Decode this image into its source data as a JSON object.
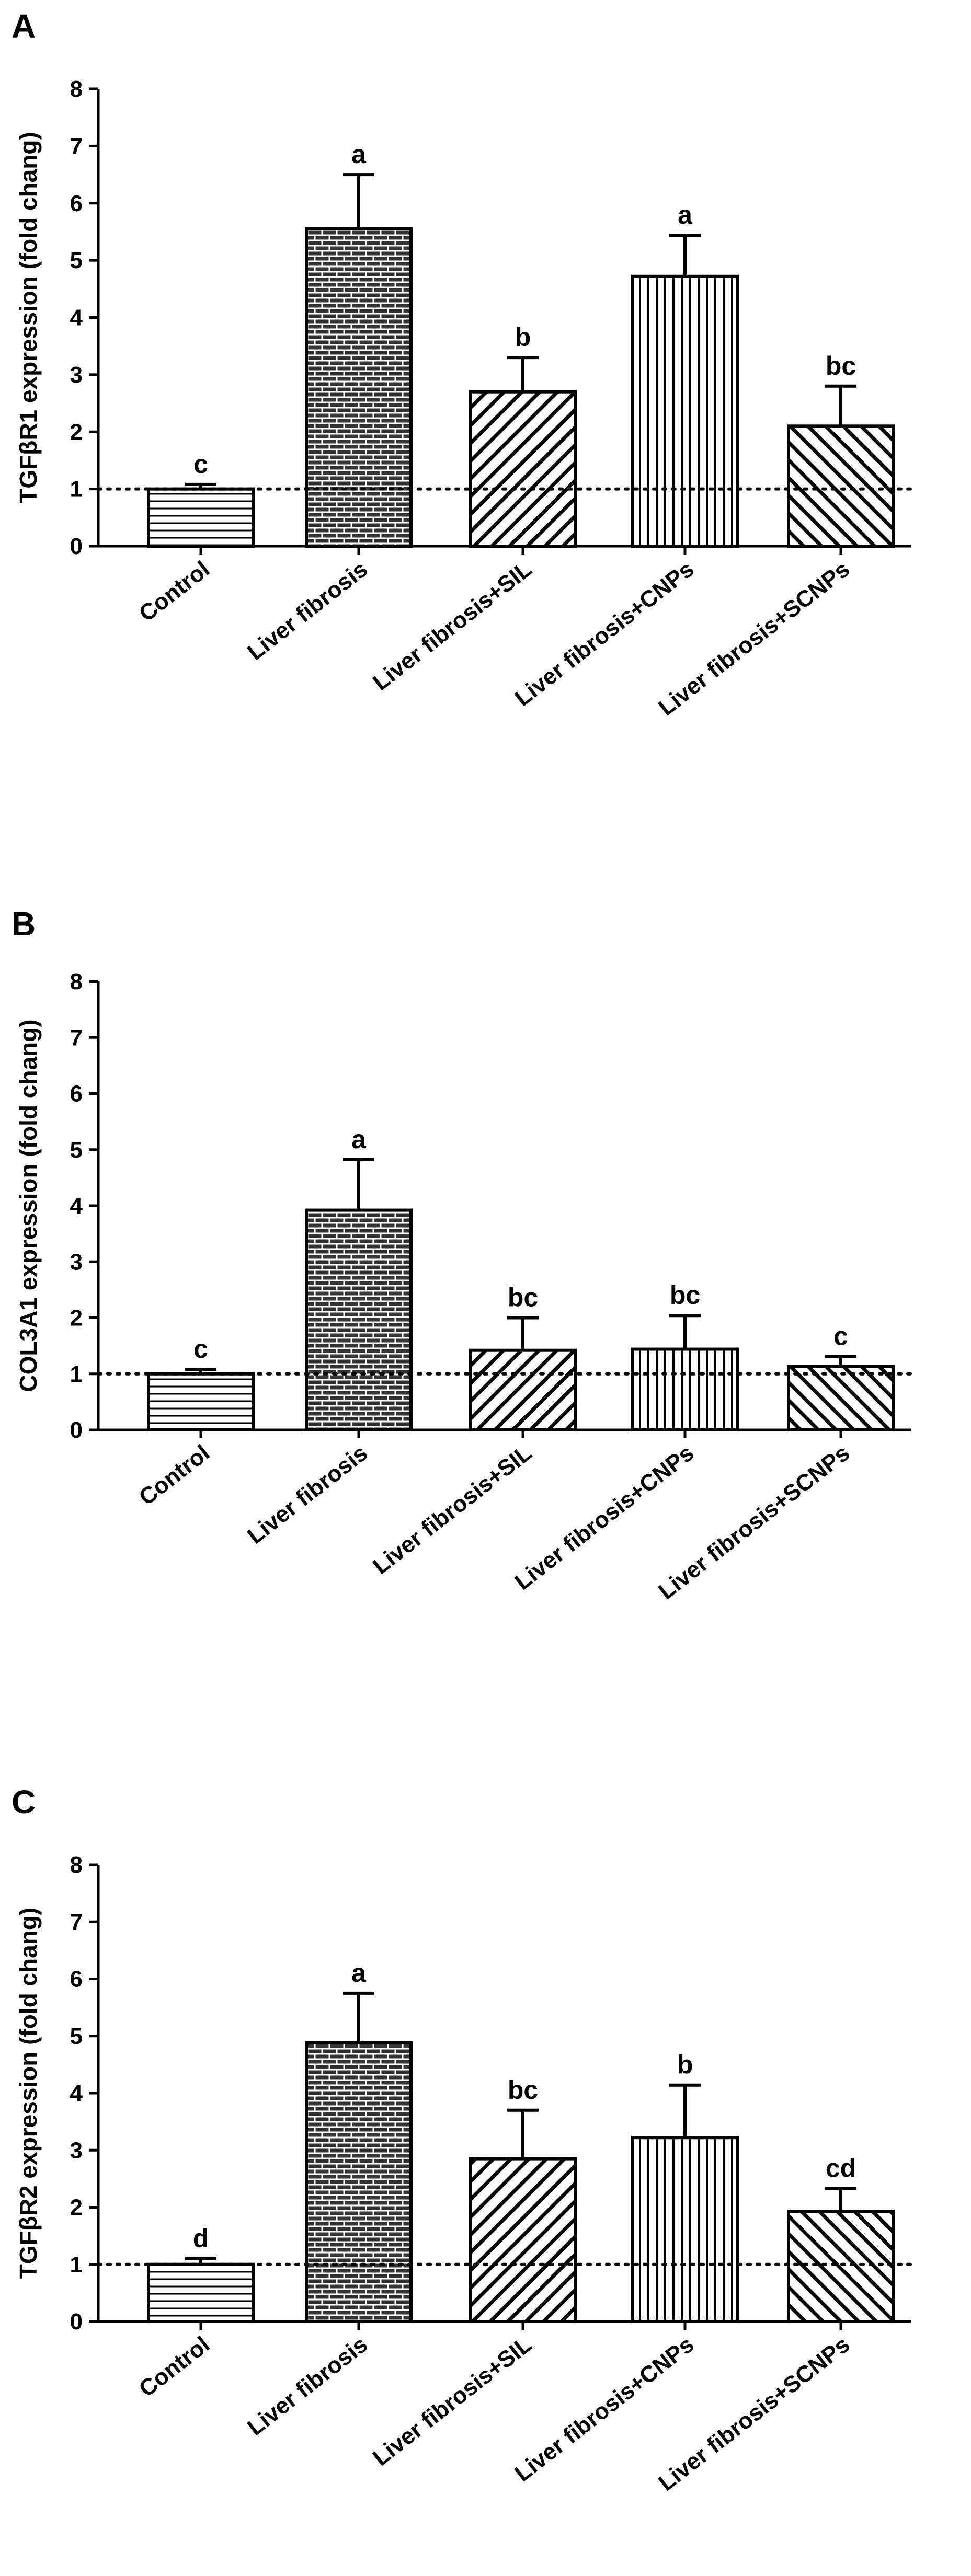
{
  "colors": {
    "ink": "#000000",
    "background": "#ffffff"
  },
  "chart_data": [
    {
      "type": "bar",
      "panel": "A",
      "title": "",
      "xlabel": "",
      "ylabel": "TGFβR1 expression (fold chang)",
      "ylim": [
        0,
        8
      ],
      "yticks": [
        0,
        1,
        2,
        3,
        4,
        5,
        6,
        7,
        8
      ],
      "reference_line": 1,
      "categories": [
        "Control",
        "Liver fibrosis",
        "Liver fibrosis+SIL",
        "Liver fibrosis+CNPs",
        "Liver fibrosis+SCNPs"
      ],
      "patterns": [
        "horizontal-lines",
        "bricks",
        "diagonal-lines",
        "vertical-lines",
        "back-diagonal-lines"
      ],
      "values": [
        1.0,
        5.55,
        2.7,
        4.72,
        2.1
      ],
      "errors": [
        0.08,
        0.95,
        0.6,
        0.72,
        0.7
      ],
      "letters": [
        "c",
        "a",
        "b",
        "a",
        "bc"
      ]
    },
    {
      "type": "bar",
      "panel": "B",
      "title": "",
      "xlabel": "",
      "ylabel": "COL3A1 expression (fold chang)",
      "ylim": [
        0,
        8
      ],
      "yticks": [
        0,
        1,
        2,
        3,
        4,
        5,
        6,
        7,
        8
      ],
      "reference_line": 1,
      "categories": [
        "Control",
        "Liver fibrosis",
        "Liver fibrosis+SIL",
        "Liver fibrosis+CNPs",
        "Liver fibrosis+SCNPs"
      ],
      "patterns": [
        "horizontal-lines",
        "bricks",
        "diagonal-lines",
        "vertical-lines",
        "back-diagonal-lines"
      ],
      "values": [
        1.0,
        3.92,
        1.42,
        1.44,
        1.13
      ],
      "errors": [
        0.08,
        0.9,
        0.58,
        0.6,
        0.18
      ],
      "letters": [
        "c",
        "a",
        "bc",
        "bc",
        "c"
      ]
    },
    {
      "type": "bar",
      "panel": "C",
      "title": "",
      "xlabel": "",
      "ylabel": "TGFβR2 expression (fold chang)",
      "ylim": [
        0,
        8
      ],
      "yticks": [
        0,
        1,
        2,
        3,
        4,
        5,
        6,
        7,
        8
      ],
      "reference_line": 1,
      "categories": [
        "Control",
        "Liver fibrosis",
        "Liver fibrosis+SIL",
        "Liver fibrosis+CNPs",
        "Liver fibrosis+SCNPs"
      ],
      "patterns": [
        "horizontal-lines",
        "bricks",
        "diagonal-lines",
        "vertical-lines",
        "back-diagonal-lines"
      ],
      "values": [
        1.0,
        4.88,
        2.85,
        3.22,
        1.93
      ],
      "errors": [
        0.1,
        0.87,
        0.85,
        0.92,
        0.4
      ],
      "letters": [
        "d",
        "a",
        "bc",
        "b",
        "cd"
      ]
    }
  ]
}
